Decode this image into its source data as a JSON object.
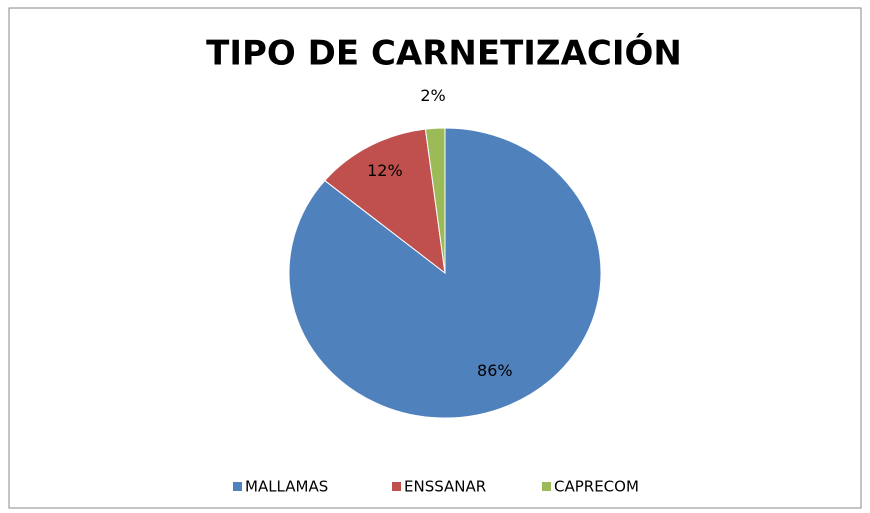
{
  "chart_data": {
    "type": "pie",
    "title": "TIPO DE CARNETIZACIÓN",
    "categories": [
      "MALLAMAS",
      "ENSSANAR",
      "CAPRECOM"
    ],
    "values": [
      86,
      12,
      2
    ],
    "value_labels": [
      "86%",
      "12%",
      "2%"
    ],
    "colors": [
      "#4f81bd",
      "#c0504d",
      "#9bbb59"
    ],
    "legend": "bottom"
  }
}
